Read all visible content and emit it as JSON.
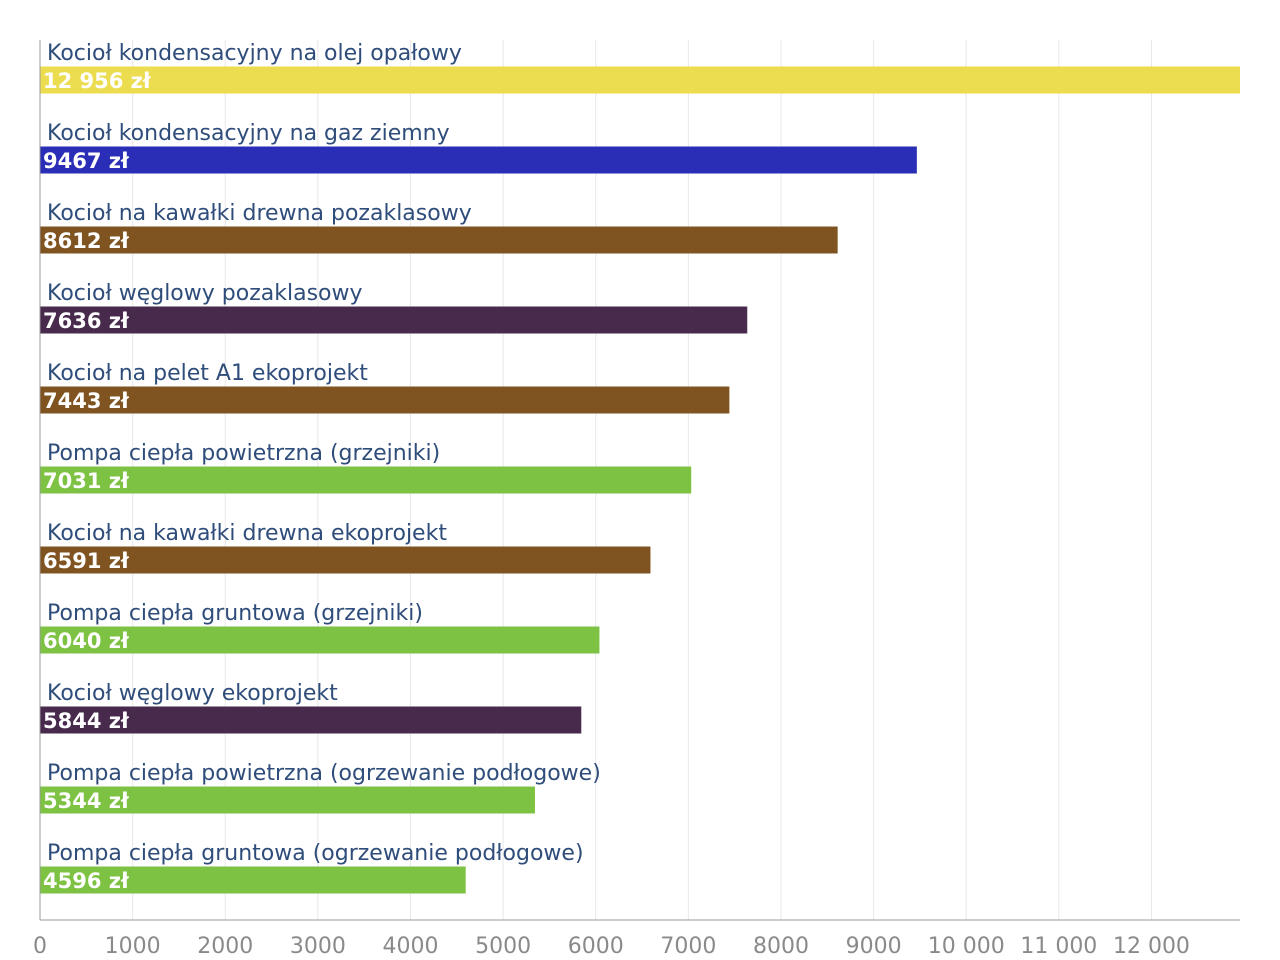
{
  "chart_data": {
    "type": "bar",
    "orientation": "horizontal",
    "title": "",
    "xlabel": "",
    "ylabel": "",
    "xlim": [
      0,
      12956
    ],
    "grid": true,
    "legend": "none",
    "xticks": [
      0,
      1000,
      2000,
      3000,
      4000,
      5000,
      6000,
      7000,
      8000,
      9000,
      10000,
      11000,
      12000
    ],
    "xtick_labels": [
      "0",
      "1000",
      "2000",
      "3000",
      "4000",
      "5000",
      "6000",
      "7000",
      "8000",
      "9000",
      "10 000",
      "11 000",
      "12 000"
    ],
    "categories": [
      "Kocioł kondensacyjny na olej opałowy",
      "Kocioł kondensacyjny na gaz ziemny",
      "Kocioł na kawałki drewna pozaklasowy",
      "Kocioł węglowy pozaklasowy",
      "Kocioł na pelet A1 ekoprojekt",
      "Pompa ciepła powietrzna (grzejniki)",
      "Kocioł na kawałki drewna ekoprojekt",
      "Pompa ciepła gruntowa (grzejniki)",
      "Kocioł węglowy ekoprojekt",
      "Pompa ciepła powietrzna (ogrzewanie podłogowe)",
      "Pompa ciepła gruntowa (ogrzewanie podłogowe)"
    ],
    "values": [
      12956,
      9467,
      8612,
      7636,
      7443,
      7031,
      6591,
      6040,
      5844,
      5344,
      4596
    ],
    "value_labels": [
      "12 956 zł",
      "9467 zł",
      "8612 zł",
      "7636 zł",
      "7443 zł",
      "7031 zł",
      "6591 zł",
      "6040 zł",
      "5844 zł",
      "5344 zł",
      "4596 zł"
    ],
    "colors": [
      "#ecdc50",
      "#2a2db5",
      "#805421",
      "#472a4c",
      "#805421",
      "#7dc242",
      "#805421",
      "#7dc242",
      "#472a4c",
      "#7dc242",
      "#7dc242"
    ]
  }
}
